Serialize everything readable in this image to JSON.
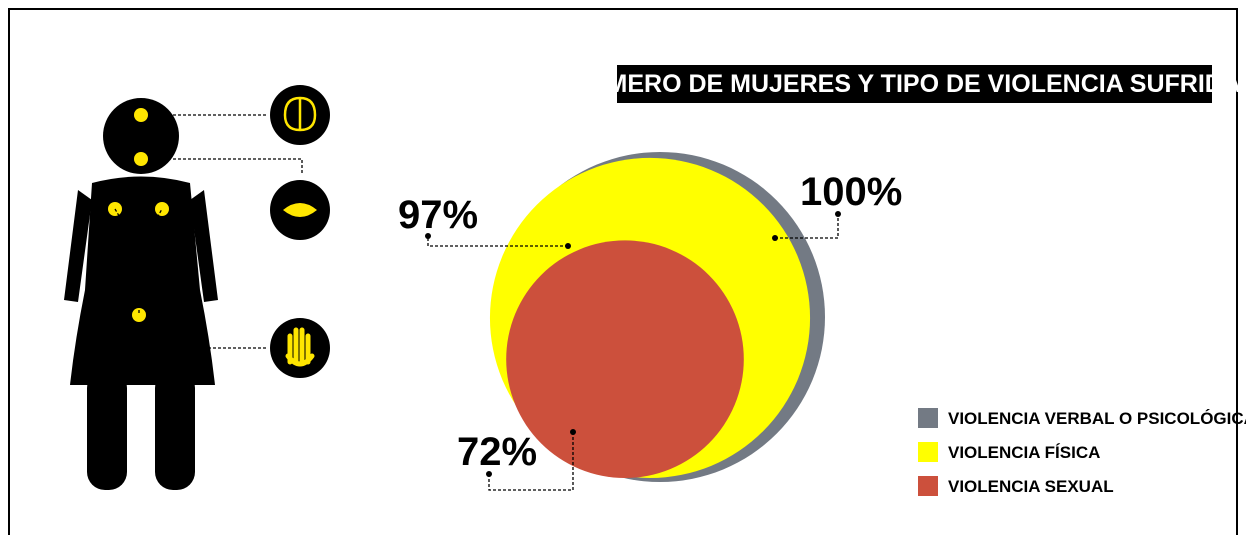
{
  "chart_data": {
    "type": "circles",
    "title": "NÚMERO DE MUJERES Y TIPO DE VIOLENCIA SUFRIDAS",
    "series": [
      {
        "name": "VIOLENCIA VERBAL O PSICOLÓGICA",
        "color": "#737a84",
        "values": [
          100
        ],
        "value_labels": [
          "100%"
        ]
      },
      {
        "name": "VIOLENCIA FÍSICA",
        "color": "#ffff00",
        "values": [
          97
        ],
        "value_labels": [
          "97%"
        ]
      },
      {
        "name": "VIOLENCIA SEXUAL",
        "color": "#cc503c",
        "values": [
          72
        ],
        "value_labels": [
          "72%"
        ]
      }
    ]
  }
}
